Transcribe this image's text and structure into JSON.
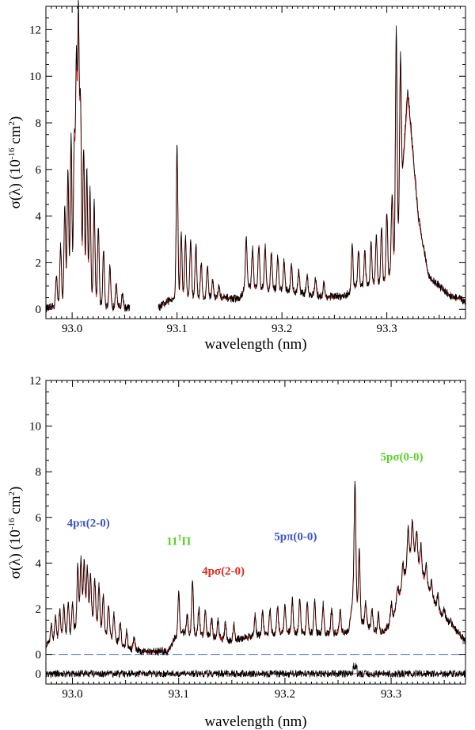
{
  "chart_data": [
    {
      "type": "line",
      "panel": "top",
      "title": "",
      "xlabel": "wavelength (nm)",
      "ylabel": "σ(λ)  (10",
      "ylabel_exp": "-16",
      "ylabel_unit": " cm",
      "ylabel_unit_exp": "2",
      "ylabel_close": ")",
      "xlim": [
        92.975,
        93.375
      ],
      "ylim": [
        -0.4,
        13.0
      ],
      "xticks": [
        93.0,
        93.1,
        93.2,
        93.3
      ],
      "xtick_labels": [
        "93.0",
        "93.1",
        "93.2",
        "93.3"
      ],
      "yticks": [
        0,
        2,
        4,
        6,
        8,
        10,
        12
      ],
      "ytick_labels": [
        "0",
        "2",
        "4",
        "6",
        "8",
        "10",
        "12"
      ],
      "gaps": [
        [
          93.055,
          93.082
        ]
      ],
      "colors": {
        "measured": "#000000",
        "model": "#e8261c"
      },
      "series": [
        {
          "id": "measured",
          "baseline": [
            [
              92.978,
              0.05
            ],
            [
              92.99,
              0.25
            ],
            [
              93.01,
              0.6
            ],
            [
              93.03,
              0.15
            ],
            [
              93.055,
              0.05
            ],
            [
              93.082,
              0.05
            ],
            [
              93.09,
              0.3
            ],
            [
              93.1,
              0.6
            ],
            [
              93.14,
              0.5
            ],
            [
              93.16,
              0.45
            ],
            [
              93.165,
              1.0
            ],
            [
              93.2,
              0.85
            ],
            [
              93.24,
              0.55
            ],
            [
              93.26,
              0.55
            ],
            [
              93.27,
              1.0
            ],
            [
              93.3,
              1.2
            ],
            [
              93.31,
              2.5
            ],
            [
              93.32,
              9.5
            ],
            [
              93.33,
              4.0
            ],
            [
              93.34,
              1.4
            ],
            [
              93.36,
              0.6
            ],
            [
              93.375,
              0.35
            ]
          ],
          "peaks": [
            [
              92.985,
              1.5
            ],
            [
              92.989,
              2.8
            ],
            [
              92.993,
              4.5
            ],
            [
              92.996,
              6.0
            ],
            [
              92.999,
              7.5
            ],
            [
              93.002,
              7.2
            ],
            [
              93.004,
              10.5
            ],
            [
              93.006,
              12.6
            ],
            [
              93.008,
              9.0
            ],
            [
              93.011,
              7.0
            ],
            [
              93.014,
              6.0
            ],
            [
              93.017,
              5.2
            ],
            [
              93.021,
              4.6
            ],
            [
              93.025,
              3.6
            ],
            [
              93.03,
              2.6
            ],
            [
              93.036,
              1.8
            ],
            [
              93.042,
              1.2
            ],
            [
              93.048,
              0.7
            ],
            [
              93.1,
              7.0
            ],
            [
              93.104,
              3.3
            ],
            [
              93.108,
              3.1
            ],
            [
              93.113,
              3.0
            ],
            [
              93.118,
              2.8
            ],
            [
              93.123,
              2.0
            ],
            [
              93.129,
              1.9
            ],
            [
              93.134,
              1.3
            ],
            [
              93.14,
              1.0
            ],
            [
              93.166,
              3.1
            ],
            [
              93.172,
              2.6
            ],
            [
              93.178,
              2.8
            ],
            [
              93.184,
              2.7
            ],
            [
              93.19,
              2.5
            ],
            [
              93.196,
              2.3
            ],
            [
              93.202,
              2.1
            ],
            [
              93.209,
              1.9
            ],
            [
              93.216,
              1.7
            ],
            [
              93.224,
              1.5
            ],
            [
              93.232,
              1.3
            ],
            [
              93.24,
              1.1
            ],
            [
              93.267,
              2.8
            ],
            [
              93.273,
              2.6
            ],
            [
              93.279,
              2.5
            ],
            [
              93.285,
              2.9
            ],
            [
              93.29,
              3.2
            ],
            [
              93.295,
              3.6
            ],
            [
              93.3,
              4.2
            ],
            [
              93.305,
              5.0
            ],
            [
              93.309,
              12.1
            ],
            [
              93.313,
              11.0
            ]
          ]
        },
        {
          "id": "model",
          "note_in_figure": "",
          "scale": 0.97
        }
      ]
    },
    {
      "type": "line",
      "panel": "bottom",
      "title": "",
      "xlabel": "wavelength (nm)",
      "ylabel": "σ(λ)  (10",
      "ylabel_exp": "-16",
      "ylabel_unit": " cm",
      "ylabel_unit_exp": "2",
      "ylabel_close": ")",
      "xlim": [
        92.975,
        93.37
      ],
      "ylim": [
        -1.3,
        12.0
      ],
      "xticks": [
        93.0,
        93.1,
        93.2,
        93.3
      ],
      "xtick_labels": [
        "93.0",
        "93.1",
        "93.2",
        "93.3"
      ],
      "yticks": [
        0,
        2,
        4,
        6,
        8,
        10,
        12
      ],
      "ytick_labels": [
        "0",
        "2",
        "4",
        "6",
        "8",
        "10",
        "12"
      ],
      "residual_zero_label": "0",
      "residual_offset": -0.85,
      "colors": {
        "measured": "#000000",
        "model": "#e8261c",
        "zero_line": "#4a6fd0"
      },
      "annotations": [
        {
          "label": "4pπ(2-0)",
          "x": 93.015,
          "y": 5.6,
          "color": "#3a54c8"
        },
        {
          "label": "11",
          "sup": "1",
          "tail": "Π",
          "x": 93.1,
          "y": 4.8,
          "color": "#5ad12a"
        },
        {
          "label": "4pσ(2-0)",
          "x": 93.142,
          "y": 3.5,
          "color": "#e8261c"
        },
        {
          "label": "5pπ(0-0)",
          "x": 93.21,
          "y": 5.0,
          "color": "#3a54c8"
        },
        {
          "label": "5pσ(0-0)",
          "x": 93.31,
          "y": 8.5,
          "color": "#5ad12a"
        }
      ],
      "series": [
        {
          "id": "measured",
          "baseline": [
            [
              92.975,
              0.4
            ],
            [
              92.98,
              0.6
            ],
            [
              92.99,
              0.9
            ],
            [
              93.0,
              0.9
            ],
            [
              93.006,
              1.6
            ],
            [
              93.01,
              2.0
            ],
            [
              93.03,
              1.0
            ],
            [
              93.05,
              0.3
            ],
            [
              93.07,
              0.1
            ],
            [
              93.09,
              0.15
            ],
            [
              93.1,
              1.0
            ],
            [
              93.12,
              0.9
            ],
            [
              93.15,
              0.6
            ],
            [
              93.17,
              0.8
            ],
            [
              93.2,
              1.0
            ],
            [
              93.24,
              0.9
            ],
            [
              93.26,
              1.0
            ],
            [
              93.265,
              3.0
            ],
            [
              93.27,
              1.5
            ],
            [
              93.29,
              0.9
            ],
            [
              93.3,
              1.4
            ],
            [
              93.31,
              3.0
            ],
            [
              93.32,
              4.8
            ],
            [
              93.33,
              3.5
            ],
            [
              93.345,
              1.9
            ],
            [
              93.37,
              0.6
            ]
          ],
          "peaks": [
            [
              92.98,
              1.3
            ],
            [
              92.984,
              1.6
            ],
            [
              92.988,
              1.9
            ],
            [
              92.992,
              2.1
            ],
            [
              92.996,
              2.2
            ],
            [
              93.0,
              2.3
            ],
            [
              93.005,
              3.9
            ],
            [
              93.008,
              4.2
            ],
            [
              93.011,
              4.1
            ],
            [
              93.014,
              3.8
            ],
            [
              93.017,
              3.5
            ],
            [
              93.021,
              3.3
            ],
            [
              93.025,
              3.0
            ],
            [
              93.029,
              2.6
            ],
            [
              93.034,
              2.2
            ],
            [
              93.039,
              1.8
            ],
            [
              93.045,
              1.4
            ],
            [
              93.051,
              1.0
            ],
            [
              93.058,
              0.7
            ],
            [
              93.1,
              2.7
            ],
            [
              93.108,
              1.7
            ],
            [
              93.113,
              3.3
            ],
            [
              93.119,
              2.0
            ],
            [
              93.125,
              1.9
            ],
            [
              93.131,
              1.6
            ],
            [
              93.137,
              1.5
            ],
            [
              93.144,
              1.4
            ],
            [
              93.152,
              1.3
            ],
            [
              93.172,
              1.7
            ],
            [
              93.179,
              1.9
            ],
            [
              93.186,
              2.0
            ],
            [
              93.193,
              2.1
            ],
            [
              93.2,
              2.2
            ],
            [
              93.207,
              2.4
            ],
            [
              93.214,
              2.5
            ],
            [
              93.221,
              2.3
            ],
            [
              93.228,
              2.4
            ],
            [
              93.236,
              2.2
            ],
            [
              93.244,
              2.0
            ],
            [
              93.252,
              1.9
            ],
            [
              93.266,
              7.6
            ],
            [
              93.27,
              4.5
            ],
            [
              93.276,
              2.3
            ],
            [
              93.282,
              2.0
            ],
            [
              93.288,
              1.8
            ],
            [
              93.3,
              2.2
            ],
            [
              93.306,
              3.0
            ],
            [
              93.311,
              4.0
            ],
            [
              93.316,
              5.6
            ],
            [
              93.32,
              5.9
            ],
            [
              93.324,
              5.5
            ],
            [
              93.328,
              4.8
            ],
            [
              93.333,
              4.0
            ],
            [
              93.338,
              3.2
            ],
            [
              93.344,
              2.6
            ],
            [
              93.35,
              2.0
            ],
            [
              93.356,
              1.5
            ],
            [
              93.362,
              1.0
            ]
          ]
        },
        {
          "id": "model",
          "scale": 0.98
        }
      ]
    }
  ]
}
